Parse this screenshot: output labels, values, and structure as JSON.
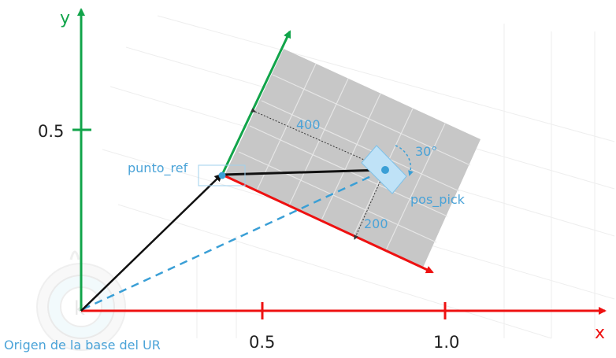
{
  "axes": {
    "x_label": "x",
    "y_label": "y",
    "x_ticks": [
      "0.5",
      "1.0"
    ],
    "y_ticks": [
      "0.5"
    ]
  },
  "labels": {
    "origin": "Origen de la base del UR",
    "ref_point": "punto_ref",
    "pick_pose": "pos_pick",
    "dim_x": "400",
    "dim_y": "200",
    "angle": "30°"
  },
  "colors": {
    "x_axis": "#ee1111",
    "y_axis": "#11a44a",
    "vector": "#111111",
    "dashed": "#3a9fd6",
    "label": "#4aa3d8",
    "plate": "#c7c7c7",
    "plate_grid": "#e6e6e6",
    "pick_fill": "#bfe2f7"
  }
}
